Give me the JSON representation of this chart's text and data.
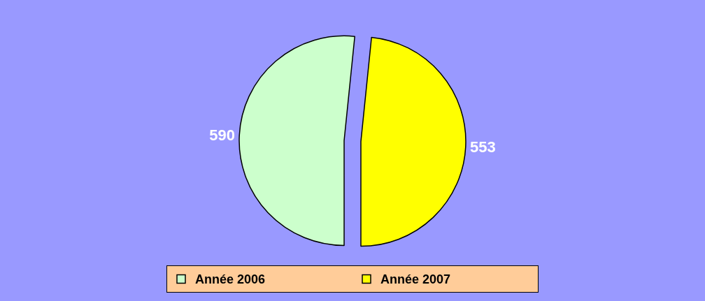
{
  "chart_data": {
    "type": "pie",
    "categories": [
      "Année 2006",
      "Année 2007"
    ],
    "values": [
      590,
      553
    ],
    "colors": [
      "#ccffcc",
      "#ffff00"
    ],
    "data_labels": true,
    "legend": "bottom"
  }
}
